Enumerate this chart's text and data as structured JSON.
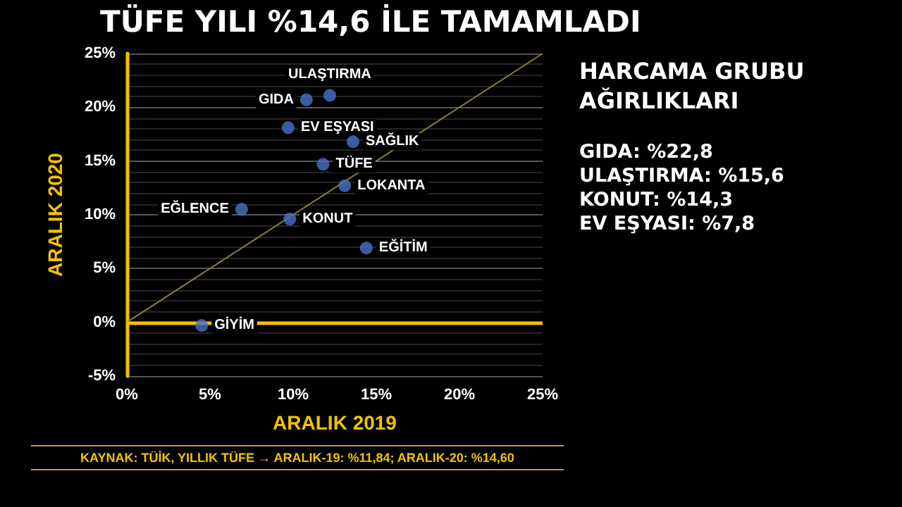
{
  "chart_data": {
    "type": "scatter",
    "title": "TÜFE YILI %14,6 İLE TAMAMLADI",
    "xlabel": "ARALIK 2019",
    "ylabel": "ARALIK 2020",
    "series": [
      {
        "type": "scatter",
        "color": "#4a72c8",
        "marker": "circle",
        "x": [
          12.2,
          10.8,
          9.7,
          13.6,
          11.8,
          13.1,
          6.9,
          9.8,
          14.4,
          4.5
        ],
        "values": [
          21.1,
          20.7,
          18.1,
          16.8,
          14.7,
          12.7,
          10.5,
          9.6,
          6.9,
          -0.3
        ]
      },
      {
        "type": "line",
        "color": "#8c7a3c",
        "marker": "none",
        "line_style": "solid",
        "x": [
          0,
          25
        ],
        "values": [
          0,
          25
        ]
      }
    ],
    "xlim": [
      0,
      25
    ],
    "xticks": [
      {
        "value": 0,
        "label": "0%"
      },
      {
        "value": 5,
        "label": "5%"
      },
      {
        "value": 10,
        "label": "10%"
      },
      {
        "value": 15,
        "label": "15%"
      },
      {
        "value": 20,
        "label": "20%"
      },
      {
        "value": 25,
        "label": "25%"
      }
    ],
    "ylim": [
      -5,
      25
    ],
    "yticks": [
      {
        "value": -5,
        "label": "-5%"
      },
      {
        "value": 0,
        "label": "0%"
      },
      {
        "value": 5,
        "label": "5%"
      },
      {
        "value": 10,
        "label": "10%"
      },
      {
        "value": 15,
        "label": "15%"
      },
      {
        "value": 20,
        "label": "20%"
      },
      {
        "value": 25,
        "label": "25%"
      }
    ],
    "grid": "y",
    "ref_lines": [
      {
        "axis": "y",
        "value": 0,
        "color": "#f2c200"
      }
    ],
    "annotations": [
      "HARCAMA GRUBU AĞIRLIKLARI",
      "GIDA: %22,8",
      "ULAŞTIRMA: %15,6",
      "KONUT: %14,3",
      "EV EŞYASI: %7,8",
      "KAYNAK: TÜİK, YILLIK TÜFE → ARALIK-19: %11,84; ARALIK-20: %14,60",
      {
        "text": "ULAŞTIRMA",
        "x": 12.2,
        "y": 21.1
      },
      {
        "text": "GIDA",
        "x": 10.8,
        "y": 20.7
      },
      {
        "text": "EV EŞYASI",
        "x": 9.7,
        "y": 18.1
      },
      {
        "text": "SAĞLIK",
        "x": 13.6,
        "y": 16.8
      },
      {
        "text": "TÜFE",
        "x": 11.8,
        "y": 14.7
      },
      {
        "text": "LOKANTA",
        "x": 13.1,
        "y": 12.7
      },
      {
        "text": "EĞLENCE",
        "x": 6.9,
        "y": 10.5
      },
      {
        "text": "KONUT",
        "x": 9.8,
        "y": 9.6
      },
      {
        "text": "EĞİTİM",
        "x": 14.4,
        "y": 6.9
      },
      {
        "text": "GİYİM",
        "x": 4.5,
        "y": -0.3
      }
    ]
  }
}
